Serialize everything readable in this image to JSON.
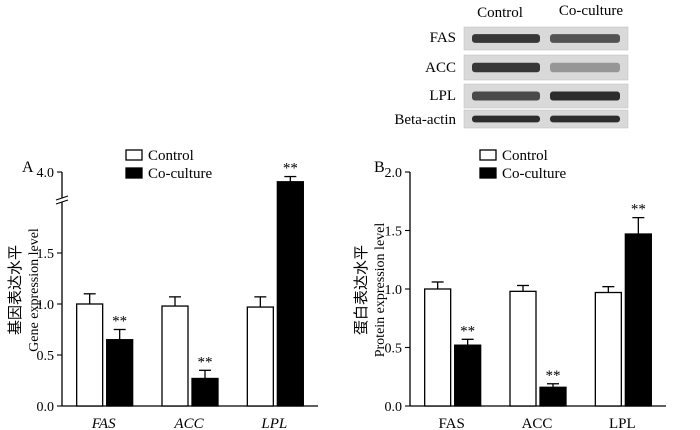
{
  "blot": {
    "columns": [
      "Control",
      "Co-culture"
    ],
    "rows": [
      "FAS",
      "ACC",
      "LPL",
      "Beta-actin"
    ],
    "intensity": [
      [
        0.85,
        0.7
      ],
      [
        0.85,
        0.35
      ],
      [
        0.75,
        0.9
      ],
      [
        0.9,
        0.9
      ]
    ]
  },
  "chart_data": [
    {
      "type": "bar",
      "panel_label": "A",
      "ylabel_cn": "基因表达水平",
      "ylabel": "Gene expression level",
      "ylim": [
        0,
        4.0
      ],
      "ylim_display": [
        0,
        2.0
      ],
      "axis_break": {
        "from": 2.0,
        "to": 3.6
      },
      "yticks": [
        0.0,
        0.5,
        1.0,
        1.5,
        4.0
      ],
      "ytick_labels": [
        "0.0",
        "0.5",
        "1.0",
        "1.5",
        "4.0"
      ],
      "categories": [
        "FAS",
        "ACC",
        "LPL"
      ],
      "category_style": "italic",
      "series": [
        {
          "name": "Control",
          "fill": "#ffffff",
          "values": [
            1.0,
            0.98,
            0.97
          ],
          "errors": [
            0.1,
            0.09,
            0.1
          ]
        },
        {
          "name": "Co-culture",
          "fill": "#000000",
          "values": [
            0.65,
            0.27,
            3.85
          ],
          "errors": [
            0.1,
            0.08,
            0.08
          ]
        }
      ],
      "significance": [
        {
          "series": 1,
          "category": 0,
          "label": "**"
        },
        {
          "series": 1,
          "category": 1,
          "label": "**"
        },
        {
          "series": 1,
          "category": 2,
          "label": "**"
        }
      ]
    },
    {
      "type": "bar",
      "panel_label": "B",
      "ylabel_cn": "蛋白表达水平",
      "ylabel": "Protein expression level",
      "ylim": [
        0,
        2.0
      ],
      "yticks": [
        0.0,
        0.5,
        1.0,
        1.5,
        2.0
      ],
      "ytick_labels": [
        "0.0",
        "0.5",
        "1.0",
        "1.5",
        "2.0"
      ],
      "categories": [
        "FAS",
        "ACC",
        "LPL"
      ],
      "category_style": "normal",
      "series": [
        {
          "name": "Control",
          "fill": "#ffffff",
          "values": [
            1.0,
            0.98,
            0.97
          ],
          "errors": [
            0.06,
            0.05,
            0.05
          ]
        },
        {
          "name": "Co-culture",
          "fill": "#000000",
          "values": [
            0.52,
            0.16,
            1.47
          ],
          "errors": [
            0.05,
            0.03,
            0.14
          ]
        }
      ],
      "significance": [
        {
          "series": 1,
          "category": 0,
          "label": "**"
        },
        {
          "series": 1,
          "category": 1,
          "label": "**"
        },
        {
          "series": 1,
          "category": 2,
          "label": "**"
        }
      ]
    }
  ]
}
